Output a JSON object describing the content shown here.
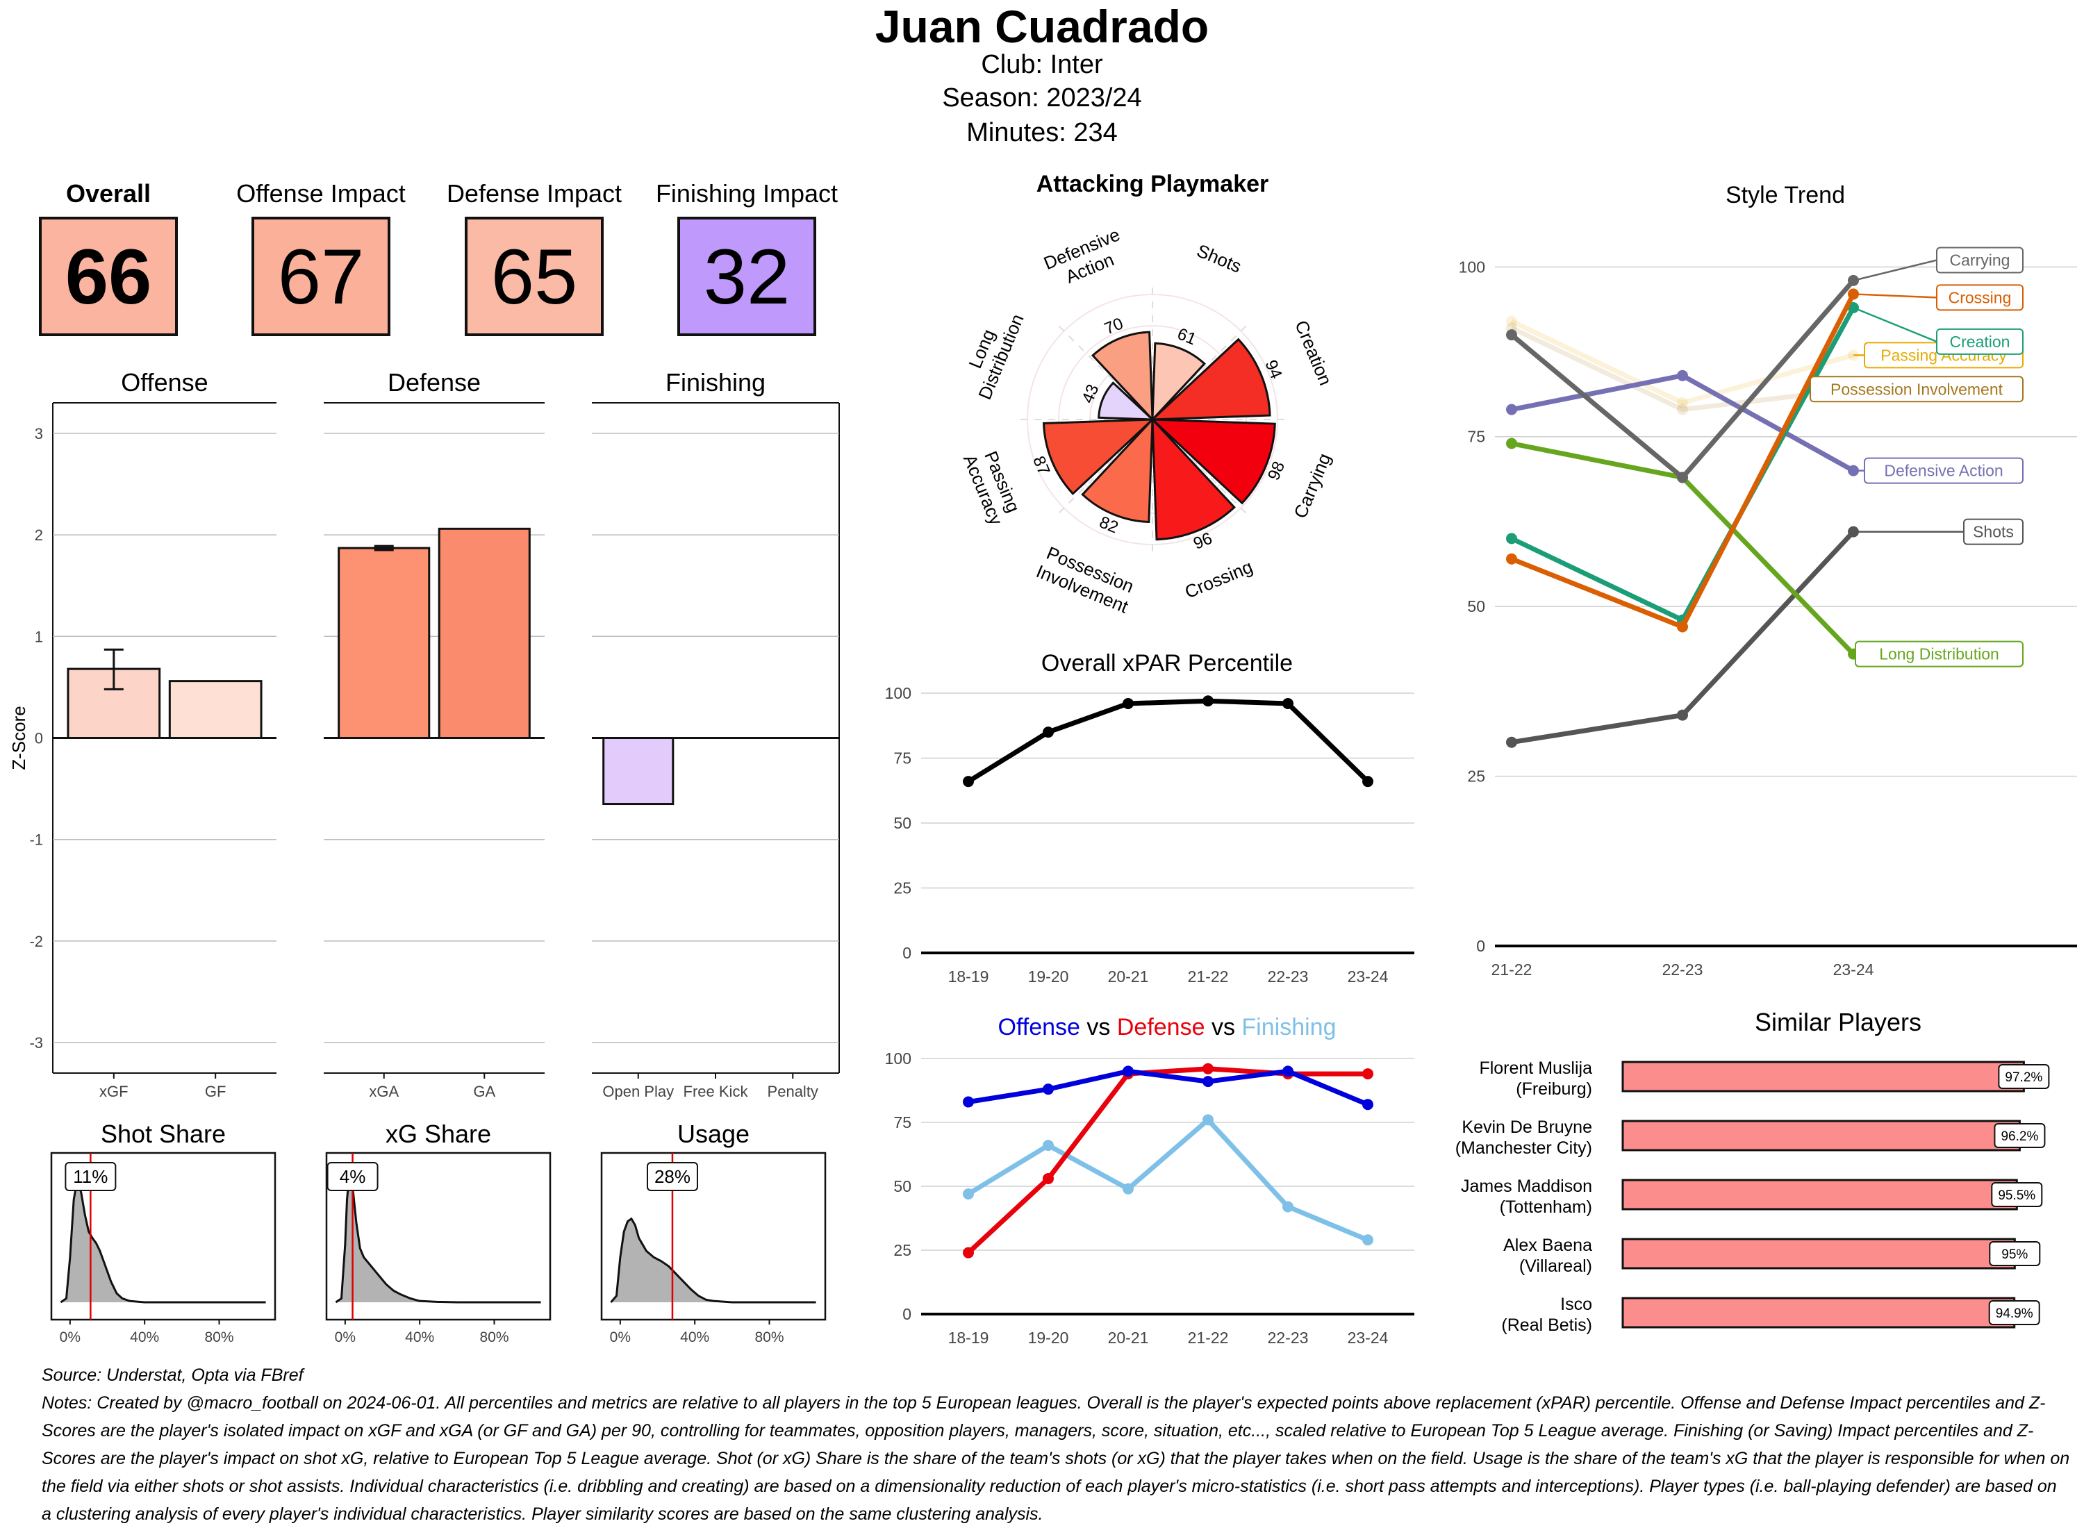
{
  "header": {
    "title": "Juan Cuadrado",
    "club_line": "Club:  Inter",
    "season_line": "Season:  2023/24",
    "minutes_line": "Minutes:  234"
  },
  "scores": [
    {
      "label": "Overall",
      "value": "66",
      "color": "#fbb4a0",
      "bold": true
    },
    {
      "label": "Offense Impact",
      "value": "67",
      "color": "#fbb09a",
      "bold": false
    },
    {
      "label": "Defense Impact",
      "value": "65",
      "color": "#fbbaa6",
      "bold": false
    },
    {
      "label": "Finishing Impact",
      "value": "32",
      "color": "#bf99fb",
      "bold": false
    }
  ],
  "chart_data": [
    {
      "id": "zscore",
      "type": "bar",
      "ylabel": "Z-Score",
      "ylim": [
        -3.3,
        3.3
      ],
      "yticks": [
        -3,
        -2,
        -1,
        0,
        1,
        2,
        3
      ],
      "panels": [
        {
          "title": "Offense",
          "categories": [
            "xGF",
            "GF"
          ],
          "values": [
            0.68,
            0.56
          ],
          "errors": [
            [
              0.48,
              0.87
            ],
            null
          ],
          "colors": [
            "#fdd5c8",
            "#fee0d4"
          ]
        },
        {
          "title": "Defense",
          "categories": [
            "xGA",
            "GA"
          ],
          "values": [
            1.87,
            2.06
          ],
          "errors": [
            [
              1.85,
              1.89
            ],
            null
          ],
          "colors": [
            "#fc9272",
            "#fb8b6d"
          ]
        },
        {
          "title": "Finishing",
          "categories": [
            "Open Play",
            "Free Kick",
            "Penalty"
          ],
          "values": [
            -0.65,
            0,
            0
          ],
          "errors": [
            null,
            null,
            null
          ],
          "colors": [
            "#e3cbfb",
            "#ffffff",
            "#ffffff"
          ]
        }
      ]
    },
    {
      "id": "density",
      "type": "area",
      "panels": [
        {
          "title": "Shot Share",
          "marker": 11,
          "marker_label": "11%",
          "x": [
            -5,
            -2,
            0,
            2,
            4,
            6,
            8,
            10,
            12,
            14,
            16,
            18,
            20,
            22,
            25,
            28,
            32,
            36,
            40,
            50,
            60,
            70,
            80,
            90,
            100,
            105
          ],
          "y": [
            0,
            0.03,
            0.35,
            0.8,
            0.96,
            0.85,
            0.68,
            0.55,
            0.5,
            0.46,
            0.4,
            0.32,
            0.24,
            0.16,
            0.07,
            0.03,
            0.01,
            0.005,
            0,
            0,
            0,
            0,
            0,
            0,
            0,
            0
          ]
        },
        {
          "title": "xG Share",
          "marker": 4,
          "marker_label": "4%",
          "x": [
            -5,
            -2,
            0,
            1,
            2,
            3,
            4,
            6,
            8,
            10,
            14,
            18,
            22,
            26,
            30,
            35,
            40,
            50,
            60,
            70,
            80,
            90,
            100,
            105
          ],
          "y": [
            0,
            0.03,
            0.45,
            0.8,
            0.95,
            0.98,
            0.9,
            0.62,
            0.42,
            0.35,
            0.28,
            0.21,
            0.14,
            0.09,
            0.06,
            0.03,
            0.01,
            0.003,
            0,
            0,
            0,
            0,
            0,
            0
          ]
        },
        {
          "title": "Usage",
          "marker": 28,
          "marker_label": "28%",
          "x": [
            -5,
            -2,
            0,
            2,
            4,
            6,
            8,
            10,
            14,
            18,
            22,
            26,
            30,
            34,
            38,
            42,
            46,
            50,
            60,
            70,
            80,
            90,
            100,
            105
          ],
          "y": [
            0,
            0.05,
            0.35,
            0.55,
            0.63,
            0.65,
            0.6,
            0.5,
            0.4,
            0.35,
            0.32,
            0.28,
            0.22,
            0.16,
            0.1,
            0.05,
            0.02,
            0.01,
            0,
            0,
            0,
            0,
            0,
            0
          ]
        }
      ],
      "xticks": [
        "0%",
        "40%",
        "80%"
      ],
      "xtick_values": [
        0,
        40,
        80
      ],
      "xlim": [
        -10,
        110
      ]
    },
    {
      "id": "polar",
      "type": "bar",
      "title": "Attacking Playmaker",
      "categories": [
        "Shots",
        "Creation",
        "Carrying",
        "Crossing",
        "Possession Involvement",
        "Passing Accuracy",
        "Long Distribution",
        "Defensive Action"
      ],
      "label_lines": [
        [
          "Shots"
        ],
        [
          "Creation"
        ],
        [
          "Carrying"
        ],
        [
          "Crossing"
        ],
        [
          "Possession",
          "Involvement"
        ],
        [
          "Passing",
          "Accuracy"
        ],
        [
          "Long",
          "Distribution"
        ],
        [
          "Defensive",
          "Action"
        ]
      ],
      "values": [
        61,
        94,
        98,
        96,
        82,
        87,
        43,
        70
      ],
      "colors": [
        "#fcc5b4",
        "#f42d25",
        "#f3000f",
        "#f81a1a",
        "#fb6a4a",
        "#f74d35",
        "#e4d4fc",
        "#fb9f82"
      ],
      "ylim": [
        0,
        100
      ]
    },
    {
      "id": "xpar",
      "type": "line",
      "title": "Overall xPAR Percentile",
      "categories": [
        "18-19",
        "19-20",
        "20-21",
        "21-22",
        "22-23",
        "23-24"
      ],
      "series": [
        {
          "name": "xPAR",
          "values": [
            66,
            85,
            96,
            97,
            96,
            66
          ],
          "color": "#000000"
        }
      ],
      "yticks": [
        0,
        25,
        50,
        75,
        100
      ],
      "ylim": [
        0,
        100
      ]
    },
    {
      "id": "odf",
      "type": "line",
      "title_parts": [
        {
          "text": "Offense",
          "color": "#0000dd"
        },
        {
          "text": "vs",
          "color": "#000000"
        },
        {
          "text": "Defense",
          "color": "#e8000b"
        },
        {
          "text": "vs",
          "color": "#000000"
        },
        {
          "text": "Finishing",
          "color": "#7ec0e8"
        }
      ],
      "categories": [
        "18-19",
        "19-20",
        "20-21",
        "21-22",
        "22-23",
        "23-24"
      ],
      "series": [
        {
          "name": "Finishing",
          "values": [
            47,
            66,
            49,
            76,
            42,
            29
          ],
          "color": "#7ec0e8"
        },
        {
          "name": "Defense",
          "values": [
            24,
            53,
            94,
            96,
            94,
            94
          ],
          "color": "#e8000b"
        },
        {
          "name": "Offense",
          "values": [
            83,
            88,
            95,
            91,
            95,
            82
          ],
          "color": "#0000dd"
        }
      ],
      "yticks": [
        0,
        25,
        50,
        75,
        100
      ],
      "ylim": [
        0,
        100
      ]
    },
    {
      "id": "style",
      "type": "line",
      "title": "Style Trend",
      "categories": [
        "21-22",
        "22-23",
        "23-24"
      ],
      "series": [
        {
          "name": "Passing Accuracy",
          "values": [
            92,
            80,
            87
          ],
          "color": "#e6ab02",
          "faint": true,
          "label_value": 87
        },
        {
          "name": "Possession Involvement",
          "values": [
            91,
            79,
            82
          ],
          "color": "#a6761d",
          "faint": true,
          "label_value": 82
        },
        {
          "name": "Shots",
          "values": [
            30,
            34,
            61
          ],
          "color": "#555555",
          "faint": false,
          "label_value": 61
        },
        {
          "name": "Long Distribution",
          "values": [
            74,
            69,
            43
          ],
          "color": "#66a61e",
          "faint": false,
          "label_value": 43
        },
        {
          "name": "Defensive Action",
          "values": [
            79,
            84,
            70
          ],
          "color": "#7570b3",
          "faint": false,
          "label_value": 70
        },
        {
          "name": "Creation",
          "values": [
            60,
            48,
            94
          ],
          "color": "#1b9e77",
          "faint": false,
          "label_value": 89
        },
        {
          "name": "Crossing",
          "values": [
            57,
            47,
            96
          ],
          "color": "#d95f02",
          "faint": false,
          "label_value": 95.5
        },
        {
          "name": "Carrying",
          "values": [
            90,
            69,
            98
          ],
          "color": "#666666",
          "faint": false,
          "label_value": 101
        }
      ],
      "yticks": [
        0,
        25,
        50,
        75,
        100
      ],
      "ylim": [
        0,
        103
      ]
    },
    {
      "id": "similar",
      "type": "bar",
      "title": "Similar Players",
      "categories": [
        {
          "name": "Florent Muslija",
          "club": "(Freiburg)"
        },
        {
          "name": "Kevin De Bruyne",
          "club": "(Manchester City)"
        },
        {
          "name": "James Maddison",
          "club": "(Tottenham)"
        },
        {
          "name": "Alex Baena",
          "club": "(Villareal)"
        },
        {
          "name": "Isco",
          "club": "(Real Betis)"
        }
      ],
      "values": [
        97.2,
        96.2,
        95.5,
        95,
        94.9
      ],
      "labels": [
        "97.2%",
        "96.2%",
        "95.5%",
        "95%",
        "94.9%"
      ],
      "color": "#fc8d8d",
      "xlim": [
        0,
        100
      ]
    }
  ],
  "footer": {
    "source": "Source: Understat, Opta via FBref",
    "notes": "Notes: Created by @macro_football on 2024-06-01. All percentiles and metrics are relative to all players in the top 5 European leagues. Overall is the player's expected points above replacement (xPAR) percentile. Offense and Defense Impact percentiles and Z-Scores are the player's isolated impact on xGF and xGA (or GF and GA) per 90, controlling for teammates, opposition players, managers, score, situation, etc..., scaled relative to European Top 5 League average. Finishing (or Saving) Impact percentiles and Z-Scores are the player's impact on shot xG, relative to European Top 5 League average. Shot (or xG) Share is the share of the team's shots (or xG) that the player takes when on the field. Usage is the share of the team's xG that the player is responsible for when on the field via either shots or shot assists. Individual characteristics (i.e. dribbling and creating) are based on a dimensionality reduction of each player's micro-statistics (i.e. short pass attempts and interceptions). Player types (i.e. ball-playing defender) are based on a clustering analysis of every player's individual characteristics. Player similarity scores are based on the same clustering analysis."
  }
}
